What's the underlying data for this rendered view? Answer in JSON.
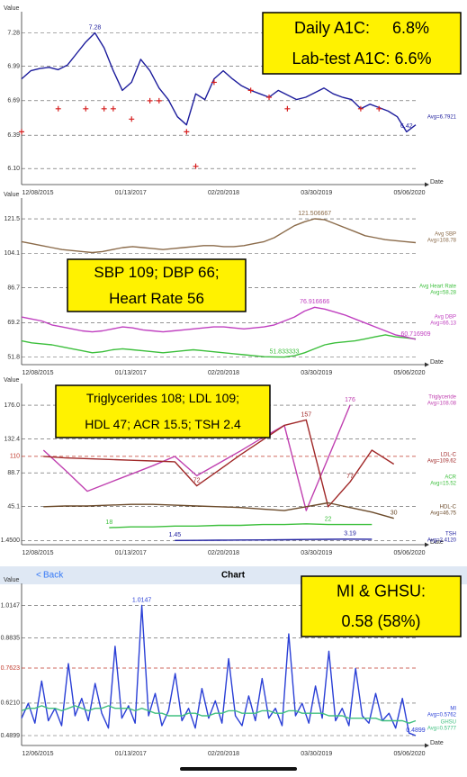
{
  "chart_data": [
    {
      "type": "line",
      "ylabel": "Value",
      "xlabel": "Date",
      "x_labels": [
        "12/08/2015",
        "01/13/2017",
        "02/20/2018",
        "03/30/2019",
        "05/06/2020"
      ],
      "ylim": [
        6.0,
        7.37
      ],
      "yticks": [
        7.28,
        6.99,
        6.69,
        6.39,
        {
          "value": 6.1,
          "label": "6.10"
        }
      ],
      "grid": true,
      "box": [
        "Daily A1C:     6.8%",
        "Lab-test A1C: 6.6%"
      ],
      "series": [
        {
          "style": "line",
          "color": "#1c1c9c",
          "annotation": "Avg=6.7921",
          "values": [
            6.88,
            6.95,
            6.97,
            6.98,
            6.96,
            7.0,
            7.1,
            7.2,
            7.28,
            7.15,
            6.95,
            6.78,
            6.85,
            7.05,
            6.95,
            6.8,
            6.7,
            6.55,
            6.48,
            6.75,
            6.7,
            6.88,
            6.95,
            6.88,
            6.82,
            6.78,
            6.75,
            6.72,
            6.78,
            6.74,
            6.7,
            6.72,
            6.76,
            6.8,
            6.75,
            6.72,
            6.7,
            6.62,
            6.66,
            6.63,
            6.6,
            6.55,
            6.42,
            6.48
          ],
          "value_labels": {
            "8": "7.28",
            "42": "6.42"
          }
        },
        {
          "style": "plus",
          "color": "#d62020",
          "values": [
            6.42,
            null,
            null,
            null,
            6.62,
            null,
            null,
            6.62,
            null,
            6.62,
            6.62,
            null,
            6.53,
            null,
            6.69,
            6.69,
            null,
            null,
            6.42,
            6.12,
            null,
            6.85,
            null,
            null,
            null,
            6.78,
            null,
            6.72,
            null,
            6.62,
            null,
            null,
            null,
            null,
            null,
            null,
            null,
            6.62,
            null,
            6.62,
            null,
            null,
            null,
            null
          ]
        }
      ]
    },
    {
      "type": "line",
      "ylabel": "Value",
      "xlabel": "Date",
      "x_labels": [
        "12/08/2015",
        "01/13/2017",
        "02/20/2018",
        "03/30/2019",
        "05/06/2020"
      ],
      "ylim": [
        48,
        126.5
      ],
      "yticks": [
        121.5,
        104.1,
        86.7,
        69.2,
        51.8
      ],
      "grid": true,
      "box": [
        "SBP 109; DBP 66;",
        "Heart Rate 56"
      ],
      "series": [
        {
          "style": "line",
          "name": "Avg SBP",
          "annotation": "Avg=108.78",
          "color": "#8b6b4a",
          "values": [
            110,
            109,
            108,
            107,
            106,
            105.5,
            105,
            104.5,
            105,
            106,
            107,
            107.5,
            107,
            106.5,
            106,
            106.5,
            107,
            107.5,
            108,
            108,
            107.5,
            107.5,
            108,
            109,
            110,
            112,
            115,
            118,
            120,
            121.506667,
            121,
            119,
            117,
            115,
            113,
            112,
            111,
            110.5,
            110,
            109.5
          ],
          "value_labels": {
            "29": "121.506667"
          }
        },
        {
          "style": "line",
          "name": "Avg Heart Rate",
          "annotation": "Avg=58.28",
          "color": "#3cbf3c",
          "values": [
            60,
            59,
            58.5,
            58,
            57,
            56,
            55,
            54,
            54.5,
            55.5,
            56,
            55.5,
            55,
            54.5,
            54,
            54.5,
            55,
            55.5,
            55,
            54.5,
            54,
            53.5,
            53,
            52.5,
            52,
            51.9,
            51.833333,
            52.5,
            54,
            56,
            58,
            59,
            59.5,
            60,
            61,
            62,
            63,
            62,
            61.5,
            61
          ],
          "value_labels": {
            "26": "51.833333"
          }
        },
        {
          "style": "line",
          "name": "Avg DBP",
          "annotation": "Avg=66.13",
          "color": "#c040c0",
          "values": [
            72,
            71,
            70,
            68,
            67,
            66,
            65,
            64.5,
            65,
            66,
            67,
            66.5,
            65.5,
            65,
            64.5,
            65,
            65.5,
            66,
            66.5,
            67,
            67,
            66.5,
            66,
            66.5,
            67,
            68,
            70,
            72,
            75,
            76.916666,
            76,
            74.5,
            73,
            71,
            69,
            67,
            65,
            63,
            62,
            60.716909
          ],
          "value_labels": {
            "29": "76.916666",
            "39": "60.716909"
          }
        }
      ]
    },
    {
      "type": "line",
      "ylabel": "Value",
      "xlabel": "Date",
      "x_labels": [
        "12/08/2015",
        "01/13/2017",
        "02/20/2018",
        "03/30/2019",
        "05/06/2020"
      ],
      "ylim": [
        -4,
        190
      ],
      "yticks": [
        {
          "value": 176,
          "label": "176.0"
        },
        132.4,
        88.7,
        45.1,
        {
          "value": 1.45,
          "label": "1.4500"
        }
      ],
      "ref_line": {
        "value": 110,
        "color": "#c0392b"
      },
      "grid": true,
      "box": [
        "Triglycerides 108; LDL 109;",
        "HDL 47; ACR 15.5; TSH 2.4"
      ],
      "series": [
        {
          "style": "line",
          "name": "Triglyceride",
          "annotation": "Avg=108.08",
          "color": "#c040b0",
          "values": [
            null,
            118,
            92,
            65,
            76,
            87,
            98,
            110,
            85,
            101,
            117,
            134,
            150,
            40,
            108,
            176,
            null,
            null,
            null
          ],
          "value_labels": {
            "15": "176"
          }
        },
        {
          "style": "line",
          "name": "LDL-C",
          "annotation": "Avg=109.62",
          "color": "#a02828",
          "values": [
            null,
            110,
            108,
            107,
            106,
            105,
            104,
            103,
            72,
            92,
            112,
            131,
            150,
            157,
            45,
            77,
            118,
            100,
            null
          ],
          "value_labels": {
            "8": "72",
            "13": "157",
            "15": "77"
          }
        },
        {
          "style": "line",
          "name": "ACR",
          "annotation": "Avg=15.52",
          "color": "#3cbf3c",
          "values": [
            null,
            null,
            null,
            null,
            18,
            19,
            19,
            20,
            20,
            21,
            21,
            22,
            22,
            23,
            22,
            22,
            22,
            null,
            null
          ],
          "value_labels": {
            "4": "18",
            "14": "22"
          }
        },
        {
          "style": "line",
          "name": "HDL-C",
          "annotation": "Avg=46.75",
          "color": "#6b4a2a",
          "values": [
            null,
            45,
            46,
            46,
            47,
            48,
            48,
            47,
            46,
            45,
            44,
            42,
            40,
            45,
            50,
            44,
            38,
            30,
            null
          ],
          "value_labels": {
            "17": "30"
          }
        },
        {
          "style": "line",
          "name": "TSH",
          "annotation": "Avg=2.4120",
          "color": "#2020a0",
          "values": [
            null,
            null,
            null,
            null,
            null,
            null,
            null,
            1.45,
            1.6,
            1.8,
            2,
            2.2,
            2.4,
            2.7,
            3,
            3.19,
            3.1,
            null,
            null
          ],
          "value_labels": {
            "7": "1.45",
            "15": "3.19"
          }
        }
      ]
    },
    {
      "type": "line",
      "ylabel": "Value",
      "xlabel": "Date",
      "nav": {
        "back": "Back",
        "title": "Chart"
      },
      "x_labels": [
        "12/06/2015",
        "01/13/2017",
        "02/20/2018",
        "03/30/2019",
        "05/06/2020"
      ],
      "ylim": [
        0.45,
        1.06
      ],
      "yticks": [
        1.0147,
        0.8835,
        {
          "value": 0.621,
          "label": "0.6210"
        },
        0.4899
      ],
      "ref_line": {
        "value": 0.7623,
        "color": "#c0392b"
      },
      "grid": true,
      "box": [
        "MI & GHSU:",
        "0.58 (58%)"
      ],
      "series": [
        {
          "style": "line",
          "name": "MI",
          "annotation": "Avg=0.5762",
          "color": "#2a3fd6",
          "values": [
            0.56,
            0.62,
            0.54,
            0.71,
            0.55,
            0.6,
            0.53,
            0.78,
            0.57,
            0.64,
            0.55,
            0.7,
            0.58,
            0.52,
            0.85,
            0.56,
            0.61,
            0.54,
            1.0147,
            0.57,
            0.66,
            0.53,
            0.59,
            0.74,
            0.55,
            0.6,
            0.52,
            0.68,
            0.56,
            0.63,
            0.54,
            0.8,
            0.57,
            0.53,
            0.65,
            0.55,
            0.72,
            0.56,
            0.6,
            0.53,
            0.9,
            0.57,
            0.62,
            0.54,
            0.69,
            0.56,
            0.83,
            0.55,
            0.6,
            0.53,
            0.76,
            0.57,
            0.54,
            0.66,
            0.55,
            0.58,
            0.52,
            0.64,
            0.5,
            0.4899
          ],
          "value_labels": {
            "18": "1.0147",
            "59": "0.4899"
          }
        },
        {
          "style": "line",
          "name": "GHSU",
          "annotation": "Avg=0.5777",
          "color": "#40c080",
          "values": [
            0.59,
            0.6,
            0.6,
            0.61,
            0.6,
            0.6,
            0.59,
            0.6,
            0.61,
            0.6,
            0.59,
            0.6,
            0.6,
            0.61,
            0.6,
            0.6,
            0.6,
            0.59,
            0.6,
            0.59,
            0.58,
            0.58,
            0.57,
            0.57,
            0.57,
            0.58,
            0.58,
            0.57,
            0.57,
            0.58,
            0.58,
            0.59,
            0.59,
            0.58,
            0.58,
            0.58,
            0.59,
            0.59,
            0.58,
            0.58,
            0.59,
            0.59,
            0.58,
            0.58,
            0.58,
            0.58,
            0.57,
            0.57,
            0.57,
            0.56,
            0.56,
            0.56,
            0.56,
            0.56,
            0.55,
            0.55,
            0.55,
            0.55,
            0.54,
            0.55
          ]
        }
      ]
    }
  ]
}
